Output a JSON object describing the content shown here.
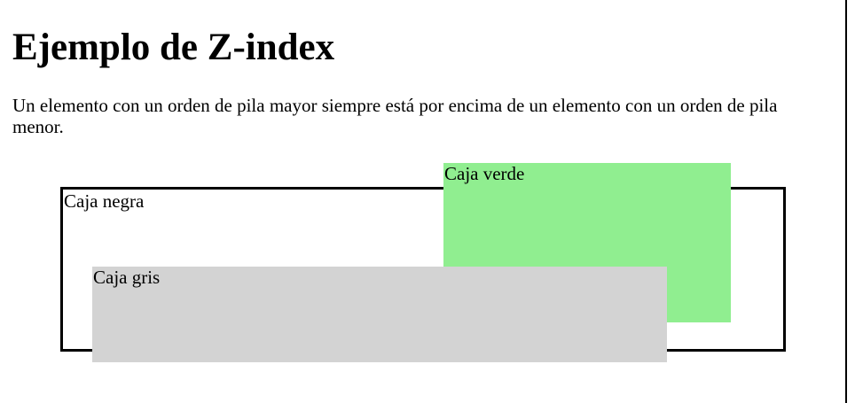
{
  "page": {
    "title": "Ejemplo de Z-index",
    "description": "Un elemento con un orden de pila mayor siempre está por encima de un elemento con un orden de pila menor."
  },
  "boxes": {
    "black": {
      "label": "Caja negra",
      "border_color": "#000000",
      "stack_order": 1
    },
    "green": {
      "label": "Caja verde",
      "background_color": "#90ee90",
      "stack_order": 2
    },
    "gray": {
      "label": "Caja gris",
      "background_color": "#d3d3d3",
      "stack_order": 3
    }
  }
}
